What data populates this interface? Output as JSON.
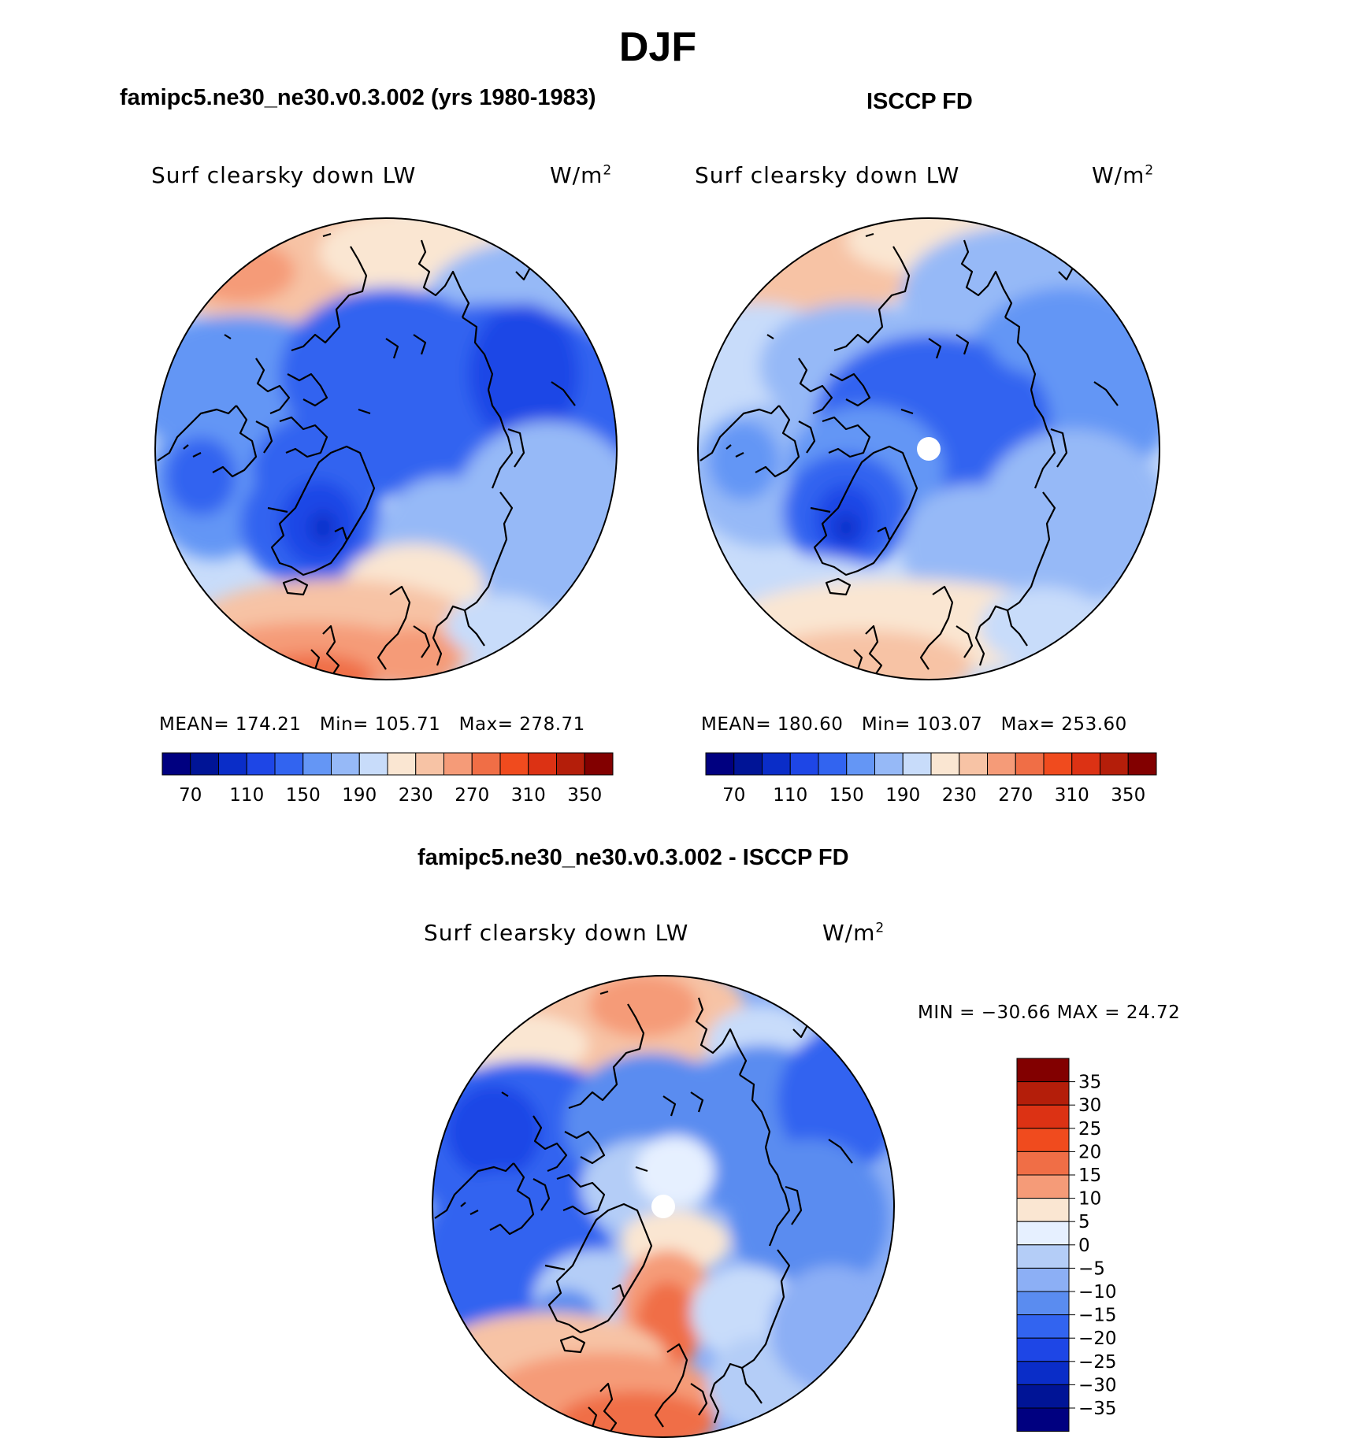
{
  "page_title": "DJF",
  "panels": [
    {
      "id": "model",
      "heading": "famipc5.ne30_ne30.v0.3.002 (yrs 1980-1983)",
      "variable": "Surf clearsky down LW",
      "units": "W/m",
      "units_sup": "2",
      "stats": {
        "mean_label": "MEAN=",
        "mean": "174.21",
        "min_label": "Min=",
        "min": "105.71",
        "max_label": "Max=",
        "max": "278.71"
      }
    },
    {
      "id": "obs",
      "heading": "ISCCP FD",
      "variable": "Surf clearsky down LW",
      "units": "W/m",
      "units_sup": "2",
      "stats": {
        "mean_label": "MEAN=",
        "mean": "180.60",
        "min_label": "Min=",
        "min": "103.07",
        "max_label": "Max=",
        "max": "253.60"
      }
    }
  ],
  "abs_colorbar": {
    "colors": [
      "#000080",
      "#001496",
      "#0a2dc8",
      "#1e46e6",
      "#3264f0",
      "#6496f5",
      "#96b9f7",
      "#c8dcfa",
      "#fae6d2",
      "#f7c3a5",
      "#f59b78",
      "#f06e46",
      "#f04b1e",
      "#dc3214",
      "#b41e0a",
      "#820000"
    ],
    "labels": [
      "70",
      "110",
      "150",
      "190",
      "230",
      "270",
      "310",
      "350"
    ]
  },
  "diff_panel": {
    "heading": "famipc5.ne30_ne30.v0.3.002 - ISCCP FD",
    "variable": "Surf clearsky down LW",
    "units": "W/m",
    "units_sup": "2",
    "minmax": "MIN = −30.66 MAX =  24.72"
  },
  "diff_colorbar": {
    "colors": [
      "#820000",
      "#b41e0a",
      "#dc3214",
      "#f04b1e",
      "#f06e46",
      "#f59b78",
      "#fae6d2",
      "#e6f0ff",
      "#b4cdf7",
      "#8caff5",
      "#5a8cf0",
      "#3264f0",
      "#1e46e6",
      "#0a2dc8",
      "#001496",
      "#000080"
    ],
    "labels": [
      "35",
      "30",
      "25",
      "20",
      "15",
      "10",
      "5",
      "0",
      "−5",
      "−10",
      "−15",
      "−20",
      "−25",
      "−30",
      "−35"
    ]
  }
}
